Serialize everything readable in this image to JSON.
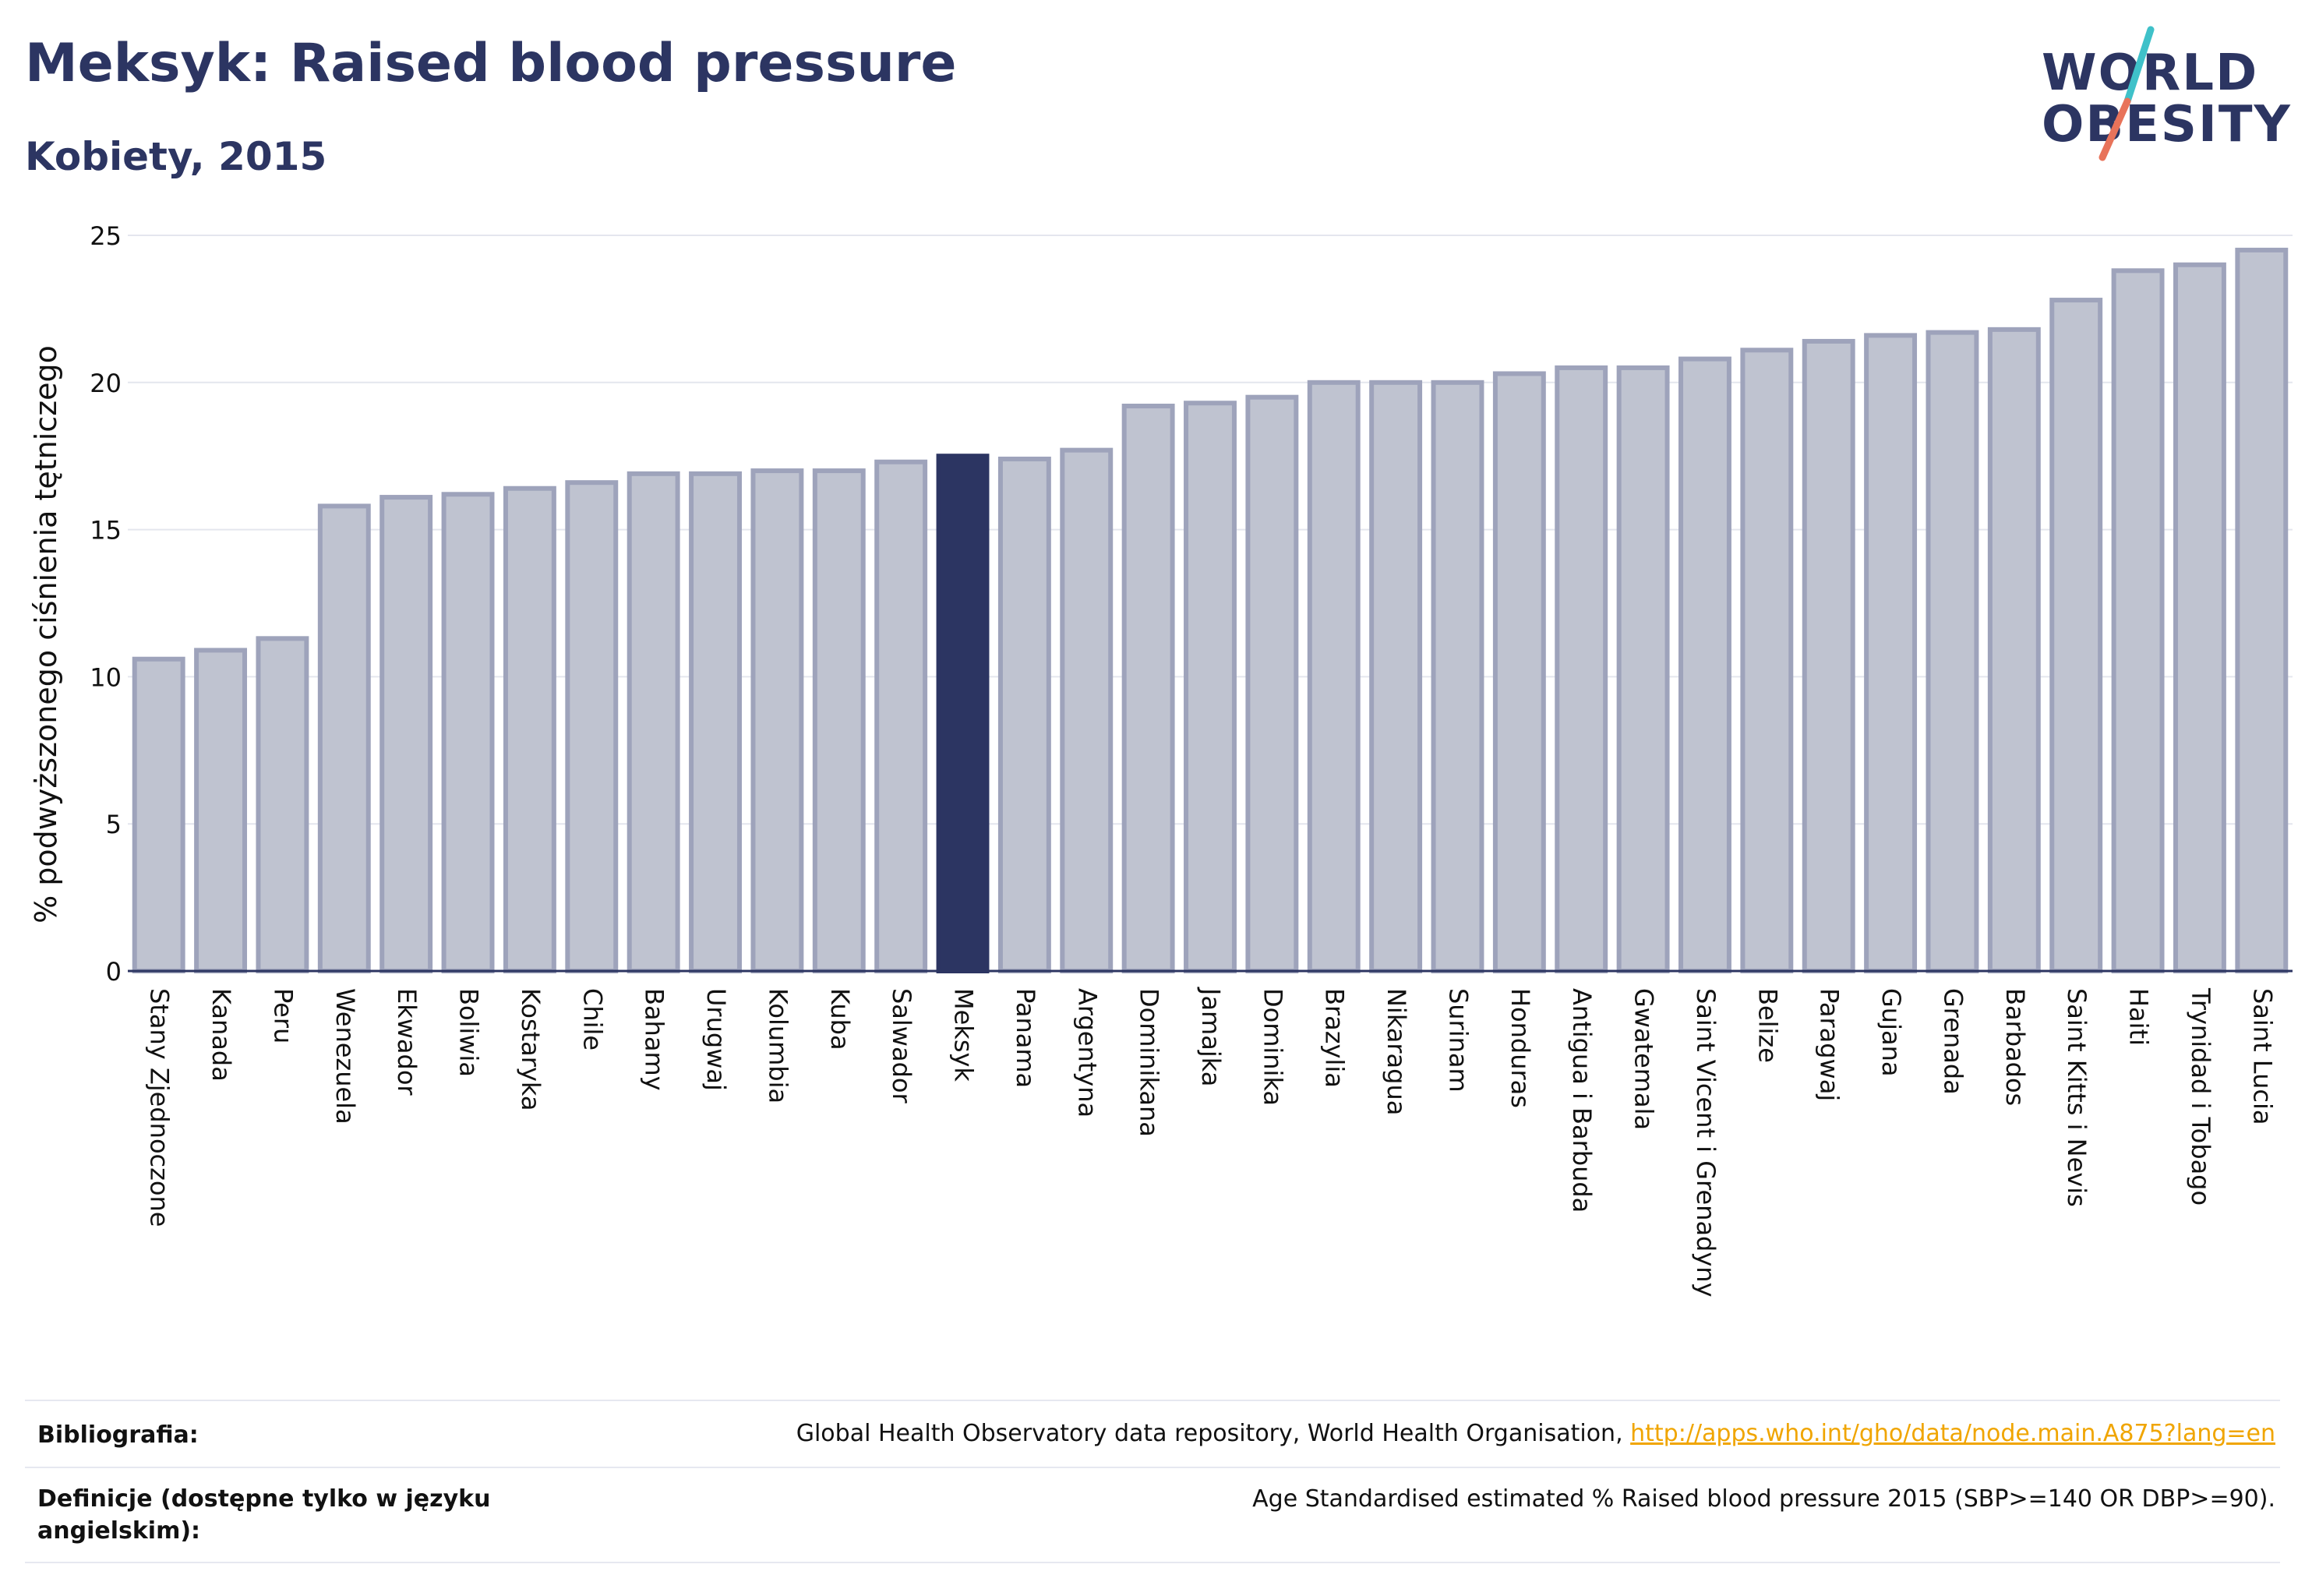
{
  "header": {
    "title": "Meksyk: Raised blood pressure",
    "subtitle": "Kobiety, 2015"
  },
  "logo": {
    "line1": "WORLD",
    "line2": "OBESITY",
    "slash_colors": [
      "#3fc1c9",
      "#e8735a"
    ]
  },
  "colors": {
    "highlight_bar": "#2c3562",
    "bar_fill": "#bfc3d0",
    "bar_stroke": "#9ea3bb",
    "axis_text": "#111111",
    "title": "#2c3562"
  },
  "chart_data": {
    "type": "bar",
    "ylabel": "% podwyższonego ciśnienia tętniczego",
    "ylim": [
      0,
      25
    ],
    "yticks": [
      0,
      5,
      10,
      15,
      20,
      25
    ],
    "grid": true,
    "highlight": "Meksyk",
    "categories": [
      "Stany Zjednoczone",
      "Kanada",
      "Peru",
      "Wenezuela",
      "Ekwador",
      "Boliwia",
      "Kostaryka",
      "Chile",
      "Bahamy",
      "Urugwaj",
      "Kolumbia",
      "Kuba",
      "Salwador",
      "Meksyk",
      "Panama",
      "Argentyna",
      "Dominikana",
      "Jamajka",
      "Dominika",
      "Brazylia",
      "Nikaragua",
      "Surinam",
      "Honduras",
      "Antigua i Barbuda",
      "Gwatemala",
      "Saint Vicent i Grenadyny",
      "Belize",
      "Paragwaj",
      "Gujana",
      "Grenada",
      "Barbados",
      "Saint Kitts i Nevis",
      "Haiti",
      "Trynidad i Tobago",
      "Saint Lucia"
    ],
    "values": [
      10.6,
      10.9,
      11.3,
      15.8,
      16.1,
      16.2,
      16.4,
      16.6,
      16.9,
      16.9,
      17.0,
      17.0,
      17.3,
      17.5,
      17.4,
      17.7,
      19.2,
      19.3,
      19.5,
      20.0,
      20.0,
      20.0,
      20.3,
      20.5,
      20.5,
      20.8,
      21.1,
      21.4,
      21.6,
      21.7,
      21.8,
      22.8,
      23.8,
      24.0,
      24.5
    ]
  },
  "footer": {
    "bibliography_label": "Bibliografia:",
    "bibliography_text": "Global Health Observatory data repository, World Health Organisation, ",
    "bibliography_link": "http://apps.who.int/gho/data/node.main.A875?lang=en",
    "definitions_label": "Definicje (dostępne tylko w języku angielskim):",
    "definitions_text": "Age Standardised estimated % Raised blood pressure 2015 (SBP>=140 OR DBP>=90)."
  }
}
